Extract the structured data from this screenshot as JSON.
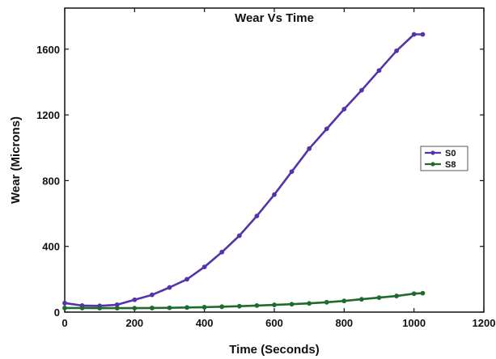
{
  "chart_data": {
    "type": "line",
    "title": "Wear Vs Time",
    "xlabel": "Time (Seconds)",
    "ylabel": "Wear (Microns)",
    "xlim": [
      0,
      1200
    ],
    "ylim": [
      0,
      1850
    ],
    "xticks": [
      0,
      200,
      400,
      600,
      800,
      1000,
      1200
    ],
    "yticks": [
      0,
      400,
      800,
      1200,
      1600
    ],
    "grid": false,
    "legend_position": "right",
    "series": [
      {
        "name": "S0",
        "color": "#5533aa",
        "marker": "circle",
        "x": [
          0,
          50,
          100,
          150,
          200,
          250,
          300,
          350,
          400,
          450,
          500,
          550,
          600,
          650,
          700,
          750,
          800,
          850,
          900,
          950,
          1000,
          1025
        ],
        "y": [
          55,
          40,
          38,
          45,
          75,
          105,
          150,
          200,
          275,
          365,
          465,
          585,
          715,
          855,
          995,
          1115,
          1235,
          1350,
          1470,
          1590,
          1690,
          1690
        ]
      },
      {
        "name": "S8",
        "color": "#1f6b2e",
        "marker": "circle",
        "x": [
          0,
          50,
          100,
          150,
          200,
          250,
          300,
          350,
          400,
          450,
          500,
          550,
          600,
          650,
          700,
          750,
          800,
          850,
          900,
          950,
          1000,
          1025
        ],
        "y": [
          25,
          25,
          24,
          24,
          24,
          25,
          26,
          28,
          30,
          33,
          36,
          40,
          44,
          48,
          53,
          60,
          68,
          78,
          88,
          98,
          112,
          115
        ]
      }
    ]
  }
}
